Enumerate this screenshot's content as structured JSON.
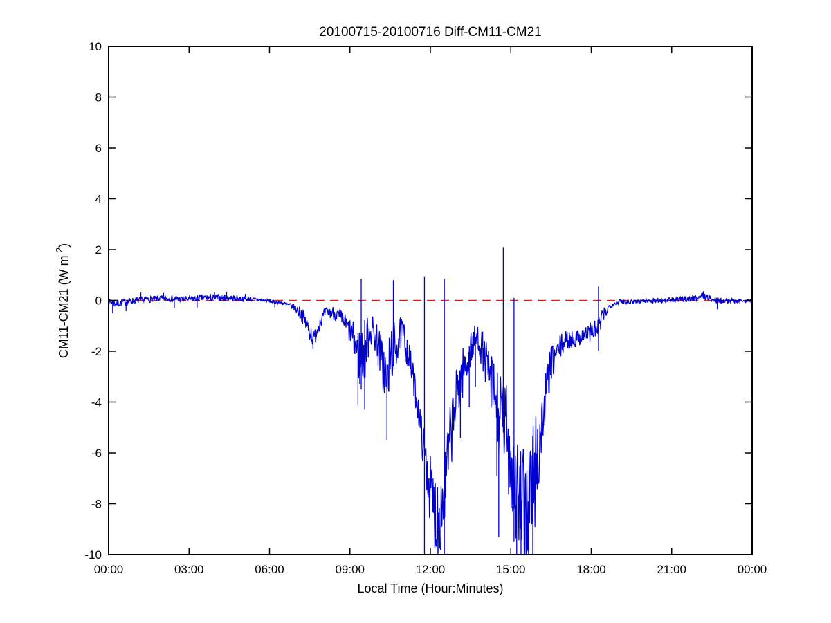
{
  "figure": {
    "background": "#ffffff",
    "axis_color": "#000000"
  },
  "chart_data": {
    "type": "line",
    "title": "20100715-20100716 Diff-CM11-CM21",
    "xlabel": "Local Time (Hour:Minutes)",
    "ylabel": "CM11-CM21 (W m^-2)",
    "ylabel_parts": {
      "main": "CM11-CM21 (W m",
      "sup": "-2",
      "close": ")"
    },
    "xlim_hours": [
      0,
      24
    ],
    "ylim": [
      -10,
      10
    ],
    "grid": false,
    "legend": "none",
    "x_ticks": [
      {
        "hour": 0,
        "label": "00:00"
      },
      {
        "hour": 3,
        "label": "03:00"
      },
      {
        "hour": 6,
        "label": "06:00"
      },
      {
        "hour": 9,
        "label": "09:00"
      },
      {
        "hour": 12,
        "label": "12:00"
      },
      {
        "hour": 15,
        "label": "15:00"
      },
      {
        "hour": 18,
        "label": "18:00"
      },
      {
        "hour": 21,
        "label": "21:00"
      },
      {
        "hour": 24,
        "label": "00:00"
      }
    ],
    "y_ticks": [
      {
        "value": -10,
        "label": "-10"
      },
      {
        "value": -8,
        "label": "-8"
      },
      {
        "value": -6,
        "label": "-6"
      },
      {
        "value": -4,
        "label": "-4"
      },
      {
        "value": -2,
        "label": "-2"
      },
      {
        "value": 0,
        "label": "0"
      },
      {
        "value": 2,
        "label": "2"
      },
      {
        "value": 4,
        "label": "4"
      },
      {
        "value": 6,
        "label": "6"
      },
      {
        "value": 8,
        "label": "8"
      },
      {
        "value": 10,
        "label": "10"
      }
    ],
    "zero_reference_line": {
      "value": 0,
      "color": "#cc2222",
      "style": "dashed"
    },
    "series": {
      "name": "CM11-CM21 difference",
      "color": "#0000d0",
      "style": "solid",
      "sample_step_minutes": 1,
      "noise_seed": 7,
      "keypoints_t_base_amp": [
        [
          0.0,
          -0.05,
          0.12
        ],
        [
          0.3,
          -0.12,
          0.15
        ],
        [
          1.0,
          0.0,
          0.13
        ],
        [
          2.0,
          0.08,
          0.12
        ],
        [
          3.0,
          0.05,
          0.12
        ],
        [
          3.6,
          0.1,
          0.14
        ],
        [
          4.5,
          0.1,
          0.14
        ],
        [
          5.2,
          0.05,
          0.1
        ],
        [
          5.8,
          0.0,
          0.07
        ],
        [
          6.4,
          -0.08,
          0.07
        ],
        [
          6.9,
          -0.25,
          0.12
        ],
        [
          7.2,
          -0.55,
          0.3
        ],
        [
          7.5,
          -1.2,
          0.4
        ],
        [
          7.65,
          -1.55,
          0.35
        ],
        [
          7.85,
          -0.9,
          0.3
        ],
        [
          8.1,
          -0.45,
          0.2
        ],
        [
          8.45,
          -0.5,
          0.3
        ],
        [
          8.8,
          -0.85,
          0.35
        ],
        [
          9.1,
          -1.4,
          0.6
        ],
        [
          9.35,
          -2.2,
          1.3
        ],
        [
          9.55,
          -2.0,
          1.3
        ],
        [
          9.75,
          -1.1,
          0.7
        ],
        [
          10.0,
          -1.5,
          0.7
        ],
        [
          10.2,
          -2.4,
          1.0
        ],
        [
          10.38,
          -3.3,
          1.4
        ],
        [
          10.55,
          -2.0,
          1.2
        ],
        [
          10.75,
          -1.7,
          0.9
        ],
        [
          10.95,
          -1.2,
          0.6
        ],
        [
          11.15,
          -2.0,
          0.7
        ],
        [
          11.35,
          -3.0,
          0.6
        ],
        [
          11.55,
          -4.3,
          0.6
        ],
        [
          11.72,
          -5.6,
          0.8
        ],
        [
          11.9,
          -6.8,
          1.1
        ],
        [
          12.1,
          -8.2,
          1.7
        ],
        [
          12.3,
          -8.5,
          1.8
        ],
        [
          12.5,
          -7.8,
          1.7
        ],
        [
          12.7,
          -5.8,
          1.4
        ],
        [
          12.9,
          -4.3,
          1.2
        ],
        [
          13.05,
          -3.3,
          1.2
        ],
        [
          13.3,
          -2.6,
          0.9
        ],
        [
          13.55,
          -1.8,
          0.7
        ],
        [
          13.75,
          -1.4,
          0.5
        ],
        [
          13.95,
          -2.0,
          0.8
        ],
        [
          14.15,
          -2.8,
          1.0
        ],
        [
          14.4,
          -3.8,
          1.5
        ],
        [
          14.6,
          -4.8,
          1.9
        ],
        [
          14.8,
          -4.8,
          1.8
        ],
        [
          15.0,
          -6.2,
          2.2
        ],
        [
          15.2,
          -7.4,
          2.6
        ],
        [
          15.4,
          -8.3,
          2.4
        ],
        [
          15.6,
          -8.3,
          2.6
        ],
        [
          15.8,
          -7.2,
          2.8
        ],
        [
          16.0,
          -6.2,
          2.2
        ],
        [
          16.2,
          -4.6,
          1.2
        ],
        [
          16.45,
          -2.7,
          0.8
        ],
        [
          16.7,
          -2.1,
          0.6
        ],
        [
          17.0,
          -1.6,
          0.4
        ],
        [
          17.4,
          -1.5,
          0.35
        ],
        [
          17.8,
          -1.3,
          0.35
        ],
        [
          18.05,
          -1.2,
          0.4
        ],
        [
          18.25,
          -1.1,
          0.5
        ],
        [
          18.45,
          -0.6,
          0.3
        ],
        [
          18.7,
          -0.2,
          0.12
        ],
        [
          19.0,
          -0.05,
          0.1
        ],
        [
          20.0,
          -0.02,
          0.09
        ],
        [
          21.0,
          0.02,
          0.1
        ],
        [
          21.6,
          0.06,
          0.12
        ],
        [
          21.9,
          0.1,
          0.12
        ],
        [
          22.15,
          0.18,
          0.15
        ],
        [
          22.35,
          0.12,
          0.12
        ],
        [
          22.6,
          0.0,
          0.12
        ],
        [
          23.0,
          0.0,
          0.1
        ],
        [
          23.5,
          -0.02,
          0.09
        ],
        [
          24.0,
          0.0,
          0.08
        ]
      ],
      "spikes_t_v_v2": [
        [
          0.15,
          -0.5
        ],
        [
          0.65,
          -0.42
        ],
        [
          1.2,
          0.32
        ],
        [
          2.05,
          0.3
        ],
        [
          2.45,
          -0.3
        ],
        [
          3.3,
          -0.28
        ],
        [
          3.95,
          0.32
        ],
        [
          4.4,
          0.34
        ],
        [
          5.1,
          0.26
        ],
        [
          6.2,
          -0.28
        ],
        [
          7.62,
          -1.9
        ],
        [
          9.3,
          -4.1
        ],
        [
          9.42,
          0.85,
          -3.5
        ],
        [
          9.55,
          -4.3
        ],
        [
          10.05,
          -2.6
        ],
        [
          10.38,
          -5.5
        ],
        [
          10.62,
          0.8,
          -2.6
        ],
        [
          11.78,
          0.95,
          -10.4
        ],
        [
          12.52,
          0.85,
          -10.4
        ],
        [
          13.12,
          -5.4
        ],
        [
          13.45,
          -4.2
        ],
        [
          13.68,
          -3.4
        ],
        [
          14.48,
          -6.9
        ],
        [
          14.55,
          -9.3
        ],
        [
          14.72,
          2.1,
          -5.2
        ],
        [
          15.12,
          0.1,
          -9.5
        ],
        [
          15.22,
          -10.5
        ],
        [
          15.38,
          -10.5
        ],
        [
          15.52,
          -10.5
        ],
        [
          15.66,
          -10.5
        ],
        [
          15.82,
          -10.5
        ],
        [
          16.15,
          -5.6
        ],
        [
          18.27,
          0.55,
          -2.0
        ],
        [
          22.18,
          0.36
        ],
        [
          22.7,
          -0.35
        ]
      ]
    }
  }
}
